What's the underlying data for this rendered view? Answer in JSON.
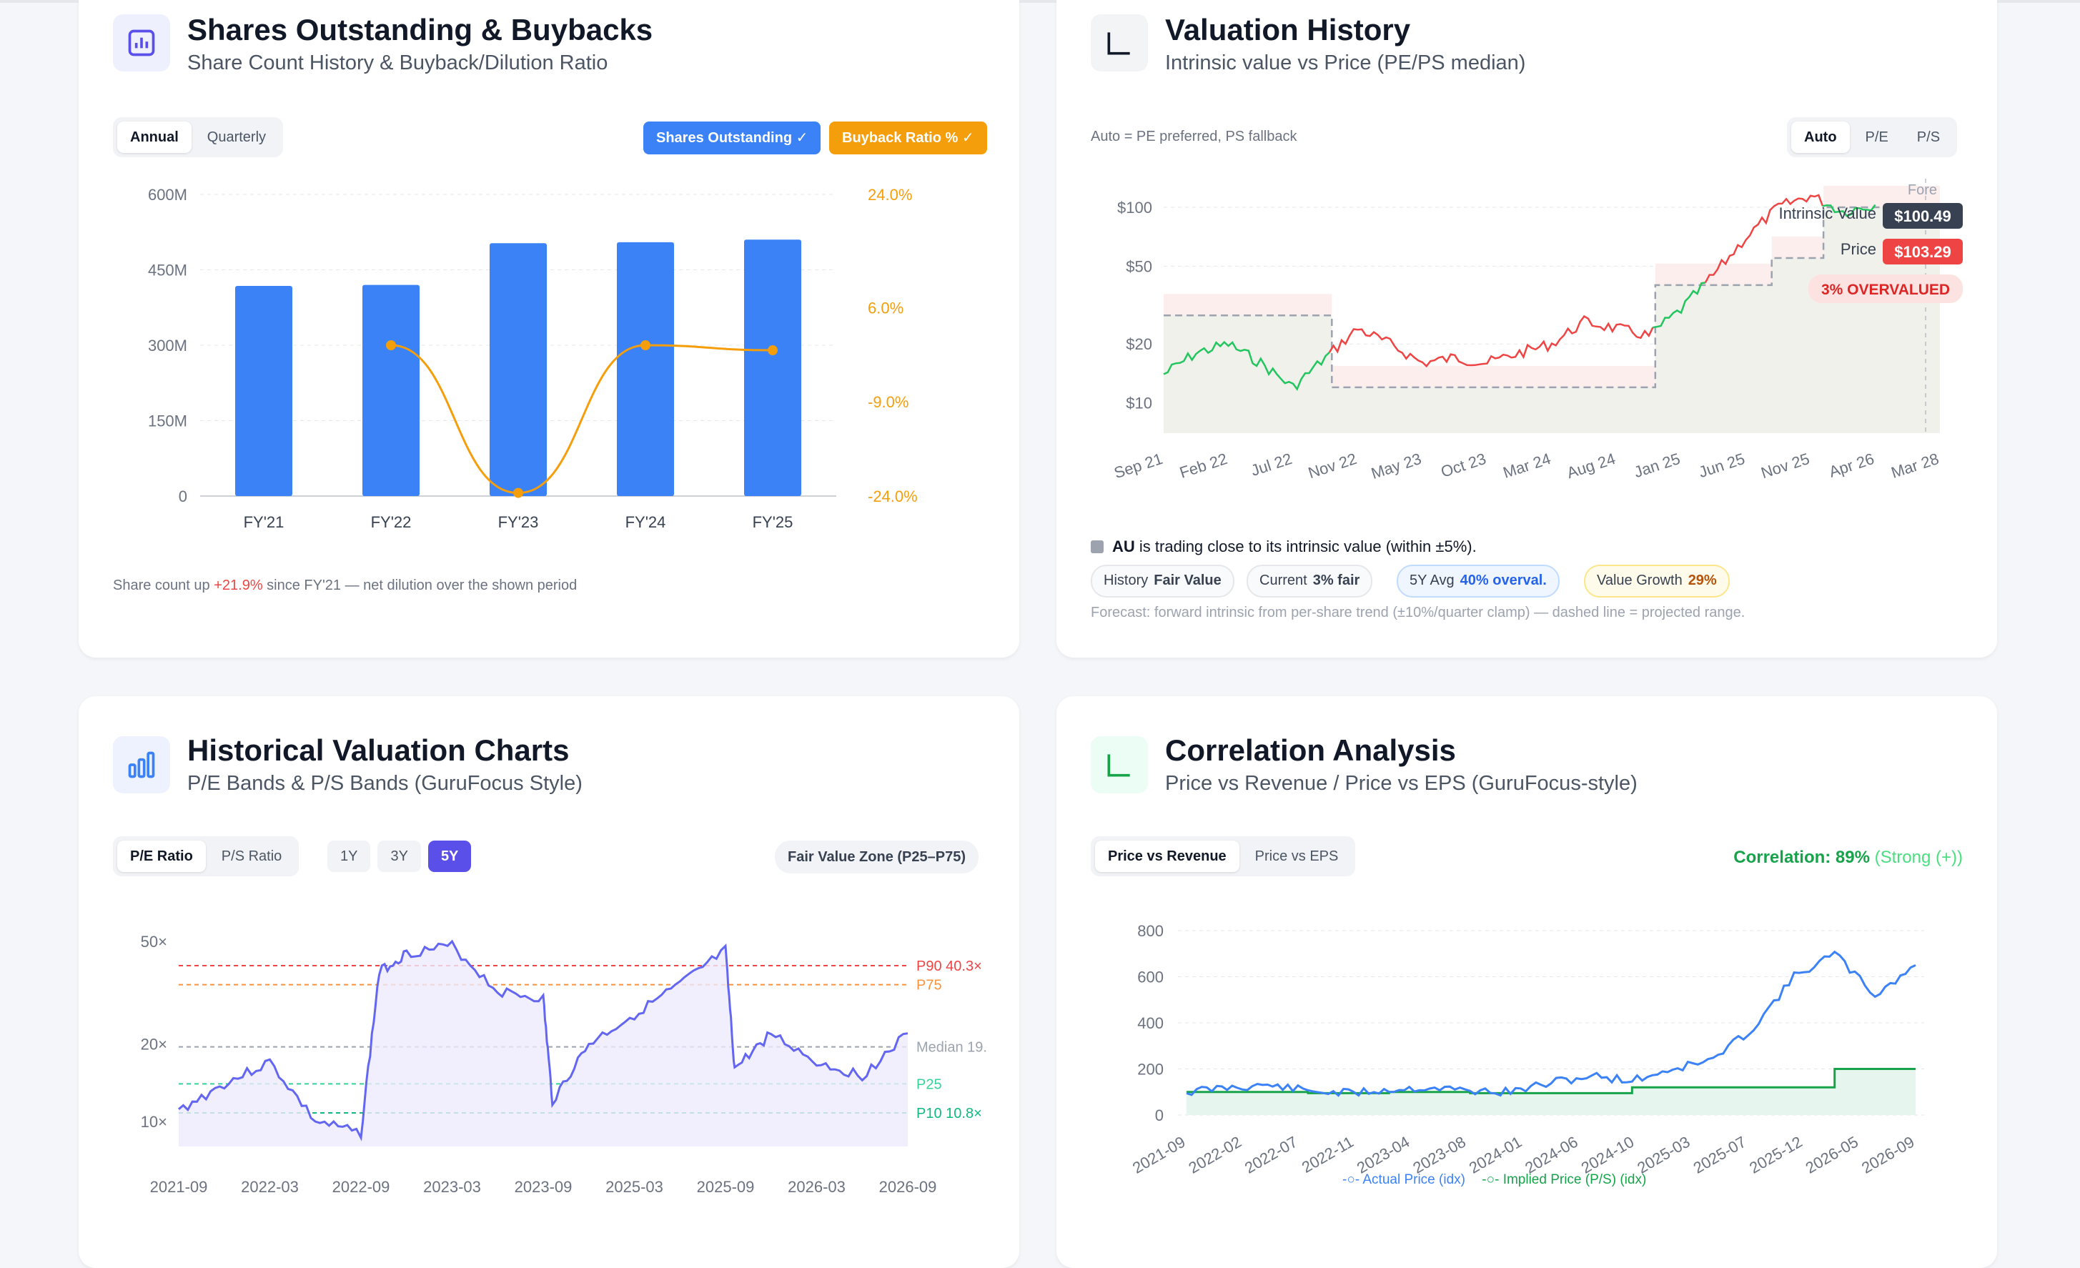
{
  "shares": {
    "title": "Shares Outstanding & Buybacks",
    "subtitle": "Share Count History & Buyback/Dilution Ratio",
    "tabs": [
      "Annual",
      "Quarterly"
    ],
    "toggle_shares": "Shares Outstanding ✓",
    "toggle_buyback": "Buyback Ratio % ✓",
    "note_pre": "Share count up ",
    "note_val": "+21.9%",
    "note_post": " since FY'21 — net dilution over the shown period",
    "colors": {
      "bars": "#3b82f6",
      "line": "#f59e0b",
      "up": "#ef4444"
    }
  },
  "valuation": {
    "title": "Valuation History",
    "subtitle": "Intrinsic value vs Price (PE/PS median)",
    "mode_note": "Auto = PE preferred, PS fallback",
    "modes": [
      "Auto",
      "P/E",
      "P/S"
    ],
    "intrinsic_label": "Intrinsic Value",
    "intrinsic_value": "$100.49",
    "price_label": "Price",
    "price_value": "$103.29",
    "status_badge": "3% OVERVALUED",
    "fore_label": "Fore",
    "summary_ticker": "AU",
    "summary_text": " is trading close to its intrinsic value (within ±5%).",
    "tags": [
      {
        "label": "History",
        "value": "Fair Value"
      },
      {
        "label": "Current",
        "value": "3% fair"
      },
      {
        "label": "5Y Avg",
        "value": "40% overval."
      },
      {
        "label": "Value Growth",
        "value": "29%"
      }
    ],
    "forecast_note": "Forecast: forward intrinsic from per-share trend (±10%/quarter clamp) — dashed line = projected range."
  },
  "historical": {
    "title": "Historical Valuation Charts",
    "subtitle": "P/E Bands & P/S Bands (GuruFocus Style)",
    "ratio_tabs": [
      "P/E Ratio",
      "P/S Ratio"
    ],
    "range_tabs": [
      "1Y",
      "3Y",
      "5Y"
    ],
    "zone_button": "Fair Value Zone (P25–P75)",
    "band_labels": {
      "p90": "P90 40.3×",
      "p75": "P75",
      "median": "Median 19.",
      "p25": "P25",
      "p10": "P10 10.8×"
    }
  },
  "correlation": {
    "title": "Correlation Analysis",
    "subtitle": "Price vs Revenue / Price vs EPS (GuruFocus-style)",
    "tabs": [
      "Price vs Revenue",
      "Price vs EPS"
    ],
    "corr_label": "Correlation: 89%",
    "corr_strength": " (Strong (+))",
    "legend_actual": "Actual Price (idx)",
    "legend_implied": "Implied Price (P/S) (idx)"
  },
  "chart_data": [
    {
      "type": "bar",
      "categories": [
        "FY'21",
        "FY'22",
        "FY'23",
        "FY'24",
        "FY'25"
      ],
      "series": [
        {
          "name": "Shares Outstanding",
          "values": [
            418,
            420,
            503,
            505,
            510
          ]
        },
        {
          "name": "Buyback Ratio %",
          "type": "line",
          "values": [
            null,
            0,
            -23.5,
            0,
            -0.8
          ]
        }
      ],
      "ylim": [
        0,
        600
      ],
      "y_ticks": [
        "0",
        "150M",
        "300M",
        "450M",
        "600M"
      ],
      "y2lim": [
        -24,
        24
      ],
      "y2_ticks": [
        "-24.0%",
        "-9.0%",
        "6.0%",
        "24.0%"
      ]
    },
    {
      "type": "line",
      "x_ticks": [
        "Sep 21",
        "Feb 22",
        "Jul 22",
        "Nov 22",
        "May 23",
        "Oct 23",
        "Mar 24",
        "Aug 24",
        "Jan 25",
        "Jun 25",
        "Nov 25",
        "Apr 26",
        "Mar 28"
      ],
      "y_ticks": [
        "$10",
        "$20",
        "$50",
        "$100"
      ],
      "y_scale": "log",
      "ylim": [
        7,
        140
      ],
      "series": [
        {
          "name": "Price",
          "x": [
            0,
            0.5,
            1,
            1.5,
            2,
            2.5,
            3,
            3.5,
            4,
            4.5,
            5,
            5.5,
            6,
            6.5,
            7,
            7.5,
            8,
            8.5,
            9,
            9.5,
            10,
            10.5,
            11
          ],
          "values": [
            14,
            18,
            20,
            16,
            12,
            17,
            24,
            20,
            16,
            17,
            16,
            18,
            20,
            26,
            24,
            22,
            30,
            45,
            70,
            100,
            115,
            95,
            103
          ]
        },
        {
          "name": "Intrinsic Value",
          "x": [
            0,
            2.6,
            2.6,
            7.6,
            7.6,
            9.4,
            9.4,
            10.2,
            10.2,
            12
          ],
          "values": [
            28,
            28,
            12,
            12,
            40,
            40,
            55,
            55,
            100,
            100
          ]
        }
      ]
    },
    {
      "type": "area",
      "x_ticks": [
        "2021-09",
        "2022-03",
        "2022-09",
        "2023-03",
        "2023-09",
        "2025-03",
        "2025-09",
        "2026-03",
        "2026-09"
      ],
      "y_ticks": [
        "10×",
        "20×",
        "50×"
      ],
      "y_scale": "log",
      "bands": {
        "p90": 40.3,
        "p75": 34,
        "median": 19.5,
        "p25": 14,
        "p10": 10.8
      },
      "series": [
        {
          "name": "P/E",
          "x": [
            0,
            0.5,
            1,
            1.5,
            2,
            2.2,
            2.5,
            3,
            3.5,
            4,
            4.1,
            4.5,
            5,
            5.5,
            6,
            6.1,
            6.5,
            7,
            7.5,
            8
          ],
          "values": [
            11,
            14,
            17,
            10,
            9,
            38,
            45,
            48,
            32,
            30,
            12,
            20,
            26,
            34,
            46,
            16,
            22,
            17,
            15,
            22
          ]
        }
      ]
    },
    {
      "type": "line",
      "x_ticks": [
        "2021-09",
        "2022-02",
        "2022-07",
        "2022-11",
        "2023-04",
        "2023-08",
        "2024-01",
        "2024-06",
        "2024-10",
        "2025-03",
        "2025-07",
        "2025-12",
        "2026-05",
        "2026-09"
      ],
      "y_ticks": [
        "0",
        "200",
        "400",
        "600",
        "800"
      ],
      "ylim": [
        0,
        800
      ],
      "series": [
        {
          "name": "Actual Price (idx)",
          "values": [
            100,
            120,
            130,
            105,
            95,
            110,
            120,
            105,
            100,
            140,
            170,
            150,
            200,
            240,
            380,
            600,
            700,
            520,
            650
          ]
        },
        {
          "name": "Implied Price (P/S) (idx)",
          "values": [
            100,
            100,
            100,
            95,
            95,
            100,
            100,
            95,
            95,
            95,
            95,
            120,
            120,
            120,
            120,
            120,
            200,
            200,
            200
          ]
        }
      ]
    }
  ]
}
